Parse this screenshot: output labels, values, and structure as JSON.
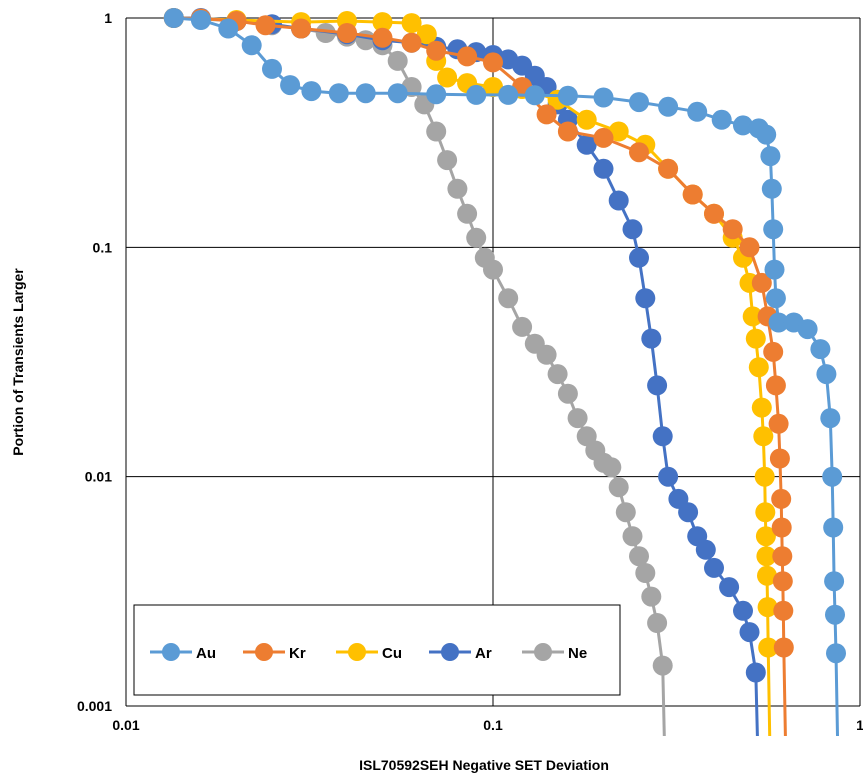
{
  "chart_data": {
    "type": "scatter",
    "xlabel": "ISL70592SEH Negative SET Deviation",
    "ylabel": "Portion of Transients Larger",
    "x_scale": "log",
    "y_scale": "log",
    "xlim": [
      0.01,
      1
    ],
    "ylim": [
      0.001,
      1
    ],
    "x_ticks": [
      {
        "value": 0.01,
        "label": "0.01"
      },
      {
        "value": 0.1,
        "label": "0.1"
      },
      {
        "value": 1,
        "label": "1"
      }
    ],
    "y_ticks": [
      {
        "value": 1,
        "label": "1"
      },
      {
        "value": 0.1,
        "label": "0.1"
      },
      {
        "value": 0.01,
        "label": "0.01"
      },
      {
        "value": 0.001,
        "label": "0.001"
      }
    ],
    "grid": true,
    "legend_position": "bottom-left",
    "series": [
      {
        "name": "Au",
        "color": "#5b9bd5",
        "points": [
          [
            0.0135,
            1
          ],
          [
            0.016,
            0.98
          ],
          [
            0.019,
            0.9
          ],
          [
            0.022,
            0.76
          ],
          [
            0.025,
            0.6
          ],
          [
            0.028,
            0.51
          ],
          [
            0.032,
            0.48
          ],
          [
            0.038,
            0.47
          ],
          [
            0.045,
            0.47
          ],
          [
            0.055,
            0.47
          ],
          [
            0.07,
            0.465
          ],
          [
            0.09,
            0.462
          ],
          [
            0.11,
            0.462
          ],
          [
            0.13,
            0.46
          ],
          [
            0.16,
            0.458
          ],
          [
            0.2,
            0.45
          ],
          [
            0.25,
            0.43
          ],
          [
            0.3,
            0.41
          ],
          [
            0.36,
            0.39
          ],
          [
            0.42,
            0.36
          ],
          [
            0.48,
            0.34
          ],
          [
            0.53,
            0.33
          ],
          [
            0.555,
            0.31
          ],
          [
            0.57,
            0.25
          ],
          [
            0.575,
            0.18
          ],
          [
            0.58,
            0.12
          ],
          [
            0.585,
            0.08
          ],
          [
            0.59,
            0.06
          ],
          [
            0.6,
            0.047
          ],
          [
            0.66,
            0.047
          ],
          [
            0.72,
            0.044
          ],
          [
            0.78,
            0.036
          ],
          [
            0.81,
            0.028
          ],
          [
            0.83,
            0.018
          ],
          [
            0.84,
            0.01
          ],
          [
            0.845,
            0.006
          ],
          [
            0.85,
            0.0035
          ],
          [
            0.855,
            0.0025
          ],
          [
            0.86,
            0.0017
          ]
        ]
      },
      {
        "name": "Kr",
        "color": "#ed7d31",
        "points": [
          [
            0.0135,
            1
          ],
          [
            0.016,
            0.995
          ],
          [
            0.02,
            0.97
          ],
          [
            0.024,
            0.93
          ],
          [
            0.03,
            0.9
          ],
          [
            0.04,
            0.86
          ],
          [
            0.05,
            0.82
          ],
          [
            0.06,
            0.78
          ],
          [
            0.07,
            0.72
          ],
          [
            0.085,
            0.68
          ],
          [
            0.1,
            0.64
          ],
          [
            0.12,
            0.5
          ],
          [
            0.14,
            0.38
          ],
          [
            0.16,
            0.32
          ],
          [
            0.2,
            0.3
          ],
          [
            0.25,
            0.26
          ],
          [
            0.3,
            0.22
          ],
          [
            0.35,
            0.17
          ],
          [
            0.4,
            0.14
          ],
          [
            0.45,
            0.12
          ],
          [
            0.5,
            0.1
          ],
          [
            0.54,
            0.07
          ],
          [
            0.56,
            0.05
          ],
          [
            0.58,
            0.035
          ],
          [
            0.59,
            0.025
          ],
          [
            0.6,
            0.017
          ],
          [
            0.605,
            0.012
          ],
          [
            0.61,
            0.008
          ],
          [
            0.612,
            0.006
          ],
          [
            0.614,
            0.0045
          ],
          [
            0.616,
            0.0035
          ],
          [
            0.618,
            0.0026
          ],
          [
            0.62,
            0.0018
          ]
        ]
      },
      {
        "name": "Cu",
        "color": "#ffc000",
        "points": [
          [
            0.0135,
            1
          ],
          [
            0.02,
            0.98
          ],
          [
            0.03,
            0.96
          ],
          [
            0.04,
            0.97
          ],
          [
            0.05,
            0.96
          ],
          [
            0.06,
            0.95
          ],
          [
            0.066,
            0.85
          ],
          [
            0.07,
            0.65
          ],
          [
            0.075,
            0.55
          ],
          [
            0.085,
            0.52
          ],
          [
            0.1,
            0.5
          ],
          [
            0.12,
            0.49
          ],
          [
            0.15,
            0.44
          ],
          [
            0.18,
            0.36
          ],
          [
            0.22,
            0.32
          ],
          [
            0.26,
            0.28
          ],
          [
            0.3,
            0.22
          ],
          [
            0.35,
            0.17
          ],
          [
            0.4,
            0.14
          ],
          [
            0.45,
            0.11
          ],
          [
            0.48,
            0.09
          ],
          [
            0.5,
            0.07
          ],
          [
            0.51,
            0.05
          ],
          [
            0.52,
            0.04
          ],
          [
            0.53,
            0.03
          ],
          [
            0.54,
            0.02
          ],
          [
            0.545,
            0.015
          ],
          [
            0.55,
            0.01
          ],
          [
            0.552,
            0.007
          ],
          [
            0.554,
            0.0055
          ],
          [
            0.556,
            0.0045
          ],
          [
            0.558,
            0.0037
          ],
          [
            0.56,
            0.0027
          ],
          [
            0.562,
            0.0018
          ]
        ]
      },
      {
        "name": "Ar",
        "color": "#4472c4",
        "points": [
          [
            0.0135,
            1
          ],
          [
            0.016,
            1
          ],
          [
            0.02,
            0.97
          ],
          [
            0.025,
            0.94
          ],
          [
            0.03,
            0.9
          ],
          [
            0.04,
            0.85
          ],
          [
            0.05,
            0.8
          ],
          [
            0.06,
            0.78
          ],
          [
            0.07,
            0.75
          ],
          [
            0.08,
            0.73
          ],
          [
            0.09,
            0.71
          ],
          [
            0.1,
            0.69
          ],
          [
            0.11,
            0.66
          ],
          [
            0.12,
            0.62
          ],
          [
            0.13,
            0.56
          ],
          [
            0.14,
            0.5
          ],
          [
            0.15,
            0.42
          ],
          [
            0.16,
            0.36
          ],
          [
            0.18,
            0.28
          ],
          [
            0.2,
            0.22
          ],
          [
            0.22,
            0.16
          ],
          [
            0.24,
            0.12
          ],
          [
            0.25,
            0.09
          ],
          [
            0.26,
            0.06
          ],
          [
            0.27,
            0.04
          ],
          [
            0.28,
            0.025
          ],
          [
            0.29,
            0.015
          ],
          [
            0.3,
            0.01
          ],
          [
            0.32,
            0.008
          ],
          [
            0.34,
            0.007
          ],
          [
            0.36,
            0.0055
          ],
          [
            0.38,
            0.0048
          ],
          [
            0.4,
            0.004
          ],
          [
            0.44,
            0.0033
          ],
          [
            0.48,
            0.0026
          ],
          [
            0.5,
            0.0021
          ],
          [
            0.52,
            0.0014
          ]
        ]
      },
      {
        "name": "Ne",
        "color": "#a5a5a5",
        "points": [
          [
            0.0135,
            1
          ],
          [
            0.016,
            0.99
          ],
          [
            0.02,
            0.97
          ],
          [
            0.025,
            0.93
          ],
          [
            0.03,
            0.9
          ],
          [
            0.035,
            0.86
          ],
          [
            0.04,
            0.83
          ],
          [
            0.045,
            0.8
          ],
          [
            0.05,
            0.76
          ],
          [
            0.055,
            0.65
          ],
          [
            0.06,
            0.5
          ],
          [
            0.065,
            0.42
          ],
          [
            0.07,
            0.32
          ],
          [
            0.075,
            0.24
          ],
          [
            0.08,
            0.18
          ],
          [
            0.085,
            0.14
          ],
          [
            0.09,
            0.11
          ],
          [
            0.095,
            0.09
          ],
          [
            0.1,
            0.08
          ],
          [
            0.11,
            0.06
          ],
          [
            0.12,
            0.045
          ],
          [
            0.13,
            0.038
          ],
          [
            0.14,
            0.034
          ],
          [
            0.15,
            0.028
          ],
          [
            0.16,
            0.023
          ],
          [
            0.17,
            0.018
          ],
          [
            0.18,
            0.015
          ],
          [
            0.19,
            0.013
          ],
          [
            0.2,
            0.0115
          ],
          [
            0.21,
            0.011
          ],
          [
            0.22,
            0.009
          ],
          [
            0.23,
            0.007
          ],
          [
            0.24,
            0.0055
          ],
          [
            0.25,
            0.0045
          ],
          [
            0.26,
            0.0038
          ],
          [
            0.27,
            0.003
          ],
          [
            0.28,
            0.0023
          ],
          [
            0.29,
            0.0015
          ]
        ]
      }
    ]
  }
}
